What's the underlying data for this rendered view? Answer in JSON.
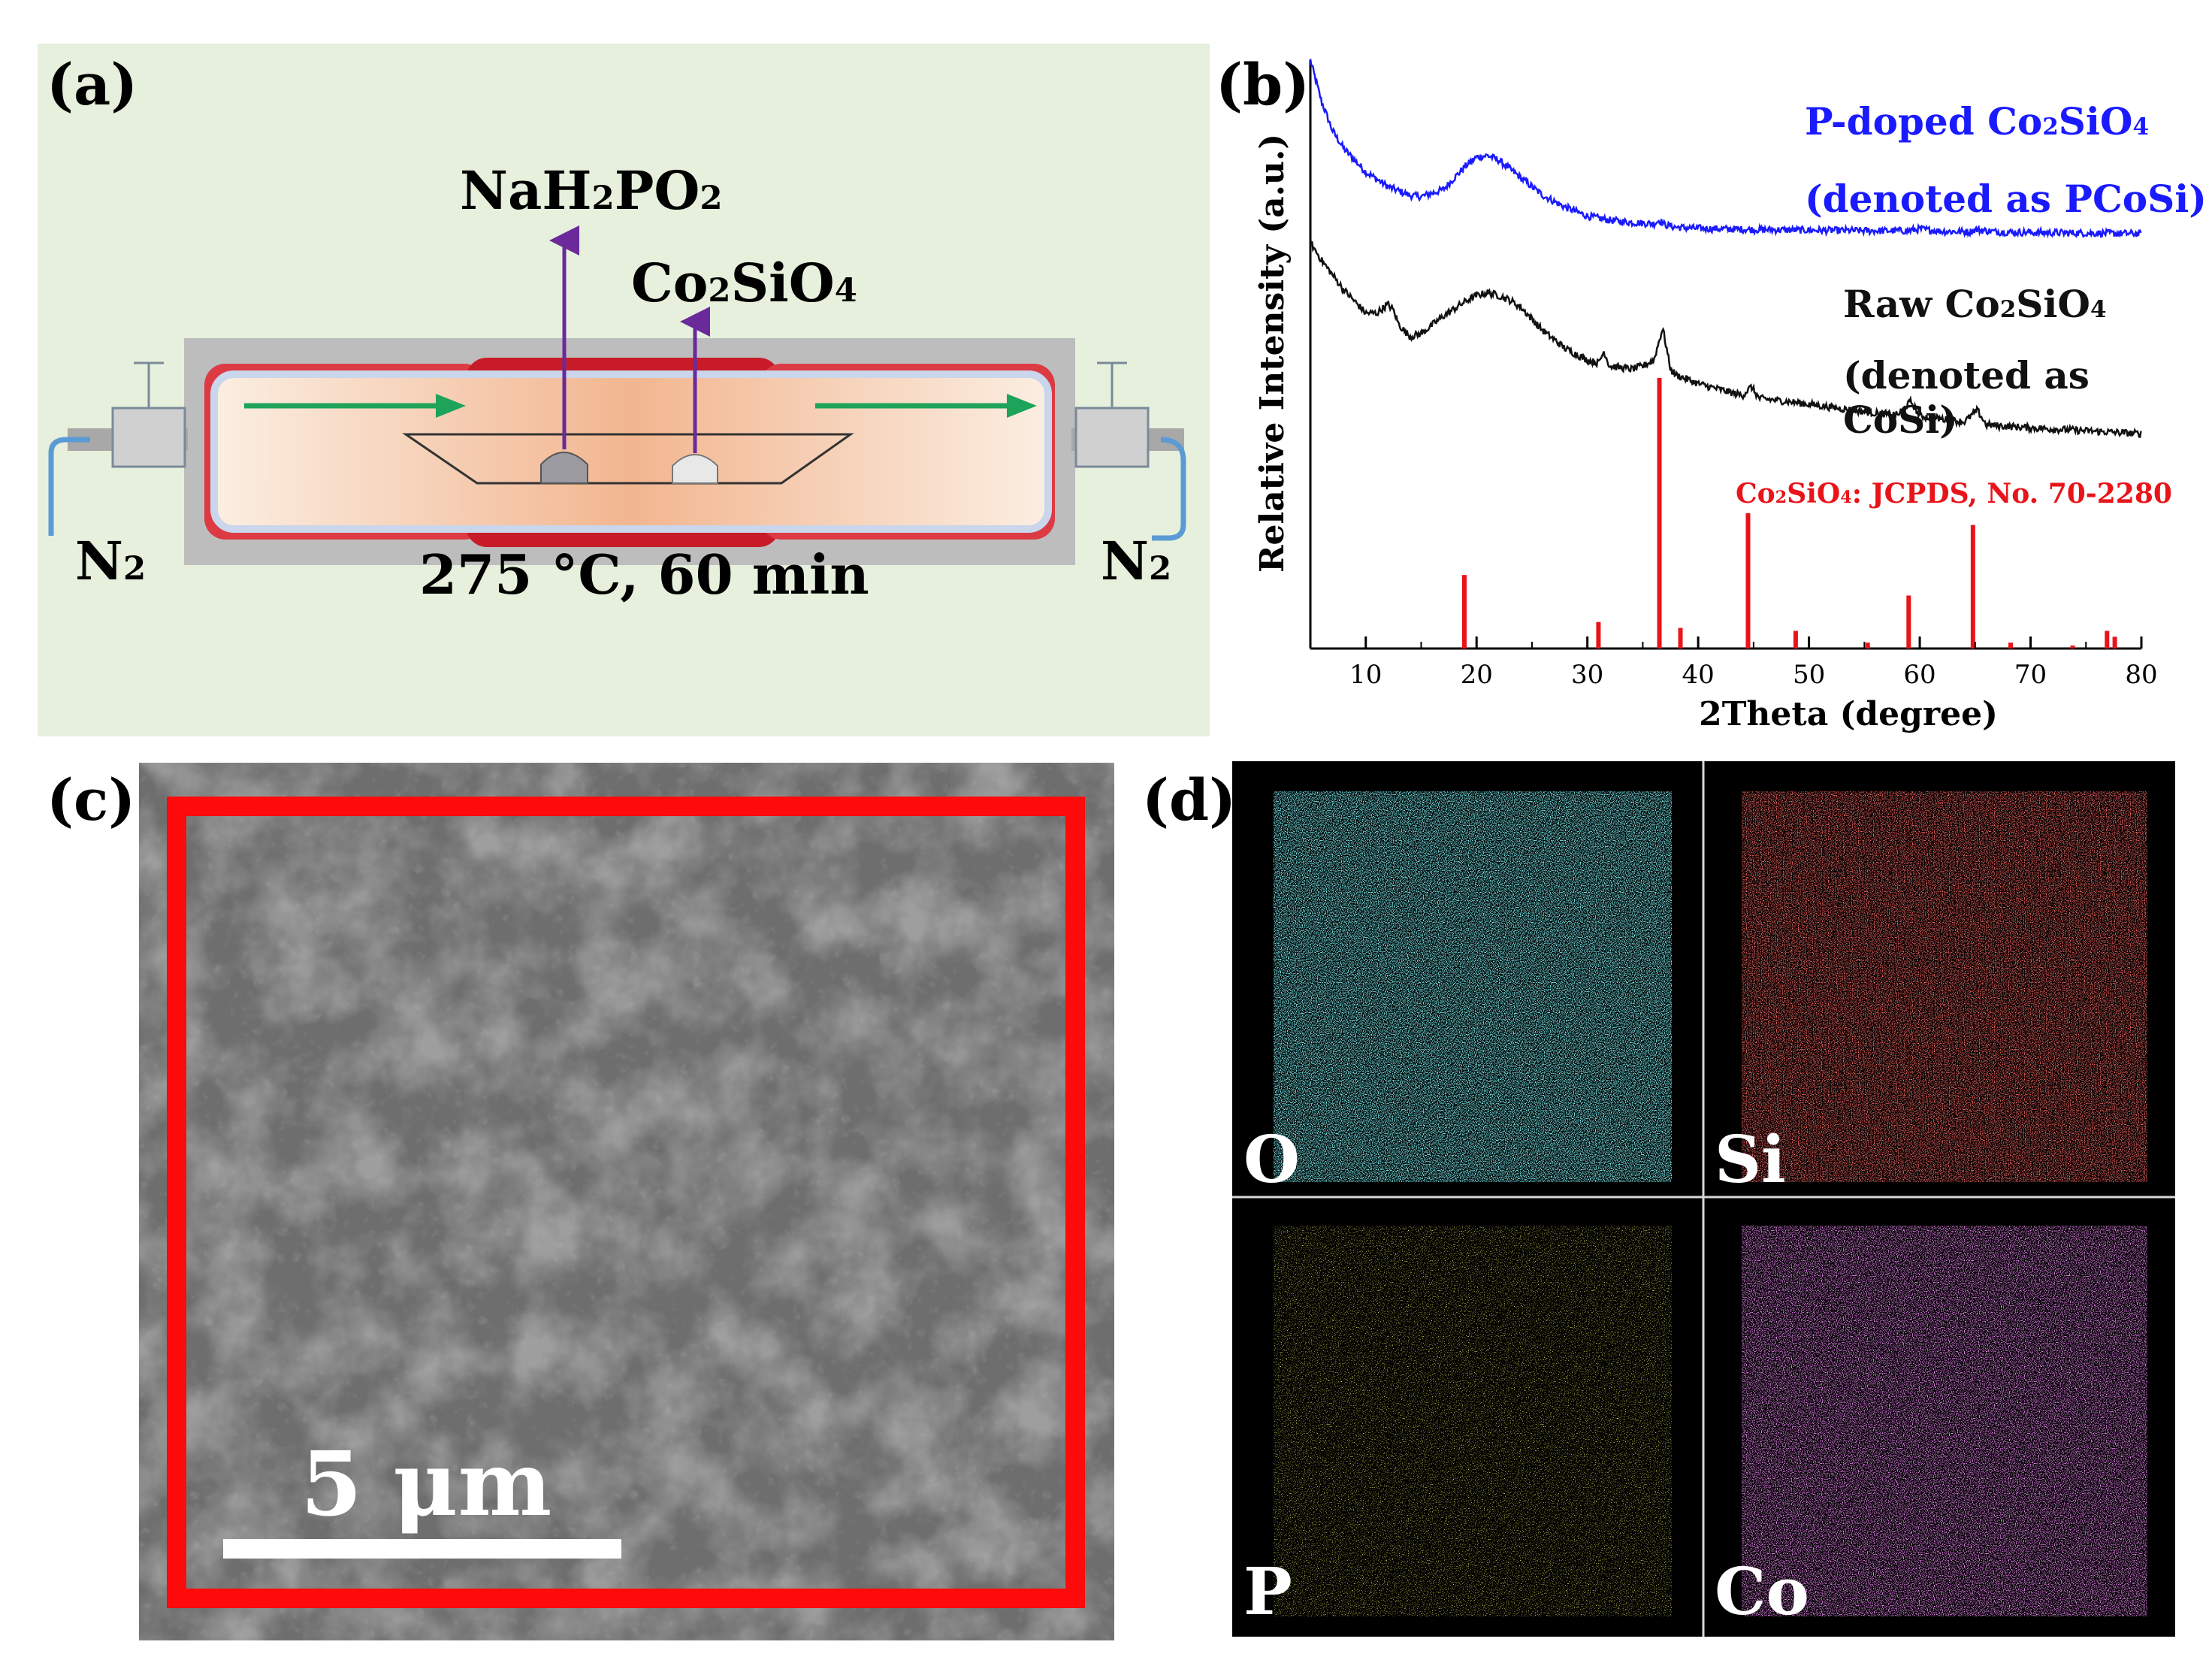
{
  "panels": {
    "a": {
      "label": "(a)",
      "reagent_top": {
        "main": "NaH",
        "sub1": "2",
        "mid": "PO",
        "sub2": "2"
      },
      "reagent_second": {
        "main": "Co",
        "sub1": "2",
        "mid": "SiO",
        "sub2": "4"
      },
      "gas_in": {
        "main": "N",
        "sub": "2"
      },
      "gas_out": {
        "main": "N",
        "sub": "2"
      },
      "conditions": "275 °C, 60 min"
    },
    "b": {
      "label": "(b)",
      "legend_pcosi_line1": {
        "pre": "P-doped Co",
        "sub1": "2",
        "mid": "SiO",
        "sub2": "4"
      },
      "legend_pcosi_line2": "(denoted as PCoSi)",
      "legend_cosi_line1": {
        "pre": "Raw Co",
        "sub1": "2",
        "mid": "SiO",
        "sub2": "4"
      },
      "legend_cosi_line2": "(denoted as CoSi)",
      "reference_label": {
        "pre": "Co",
        "sub1": "2",
        "mid": "SiO",
        "sub2": "4",
        "post": ": JCPDS, No. 70-2280"
      }
    },
    "c": {
      "label": "(c)",
      "scale_bar_text": "5 μm"
    },
    "d": {
      "label": "(d)",
      "maps": [
        {
          "element": "O",
          "color": "#2ec4cc"
        },
        {
          "element": "Si",
          "color": "#e0221e"
        },
        {
          "element": "P",
          "color": "#c8c21e"
        },
        {
          "element": "Co",
          "color": "#c43ad0"
        }
      ]
    }
  },
  "chart_data": {
    "type": "line",
    "title": "",
    "xlabel": "2Theta (degree)",
    "ylabel": "Relative Intensity (a.u.)",
    "xlim": [
      5,
      80
    ],
    "xticks": [
      10,
      20,
      30,
      40,
      50,
      60,
      70,
      80
    ],
    "series": [
      {
        "name": "P-doped Co2SiO4 (denoted as PCoSi)",
        "color": "#1a1aff",
        "x": [
          5,
          6,
          7,
          8,
          10,
          12,
          14,
          15,
          17,
          19,
          20,
          21,
          22,
          24,
          26,
          28,
          30,
          32,
          34,
          36,
          36.5,
          37,
          38,
          40,
          45,
          50,
          55,
          59,
          60,
          62,
          64.5,
          65,
          67,
          70,
          75,
          80
        ],
        "y": [
          1.0,
          0.93,
          0.88,
          0.85,
          0.81,
          0.785,
          0.77,
          0.768,
          0.78,
          0.82,
          0.835,
          0.838,
          0.83,
          0.8,
          0.77,
          0.75,
          0.735,
          0.728,
          0.724,
          0.722,
          0.728,
          0.72,
          0.716,
          0.714,
          0.712,
          0.711,
          0.71,
          0.71,
          0.713,
          0.709,
          0.708,
          0.712,
          0.708,
          0.707,
          0.706,
          0.705
        ]
      },
      {
        "name": "Raw Co2SiO4 (denoted as CoSi)",
        "color": "#111111",
        "x": [
          5,
          6,
          8,
          10,
          11,
          12,
          12.5,
          13,
          14,
          15,
          17,
          19,
          20,
          21,
          22,
          23,
          24,
          25,
          26,
          28,
          30,
          31,
          31.5,
          32,
          34,
          35,
          36,
          36.8,
          37.5,
          38,
          40,
          42,
          44,
          44.8,
          45.5,
          48,
          52,
          56,
          58,
          59.2,
          60,
          62,
          64,
          65.2,
          66,
          70,
          75,
          80
        ],
        "y": [
          0.69,
          0.66,
          0.61,
          0.57,
          0.57,
          0.585,
          0.575,
          0.55,
          0.53,
          0.535,
          0.565,
          0.59,
          0.6,
          0.605,
          0.6,
          0.592,
          0.58,
          0.56,
          0.54,
          0.51,
          0.49,
          0.485,
          0.505,
          0.48,
          0.475,
          0.48,
          0.49,
          0.545,
          0.475,
          0.465,
          0.45,
          0.44,
          0.43,
          0.445,
          0.425,
          0.42,
          0.41,
          0.4,
          0.397,
          0.42,
          0.395,
          0.39,
          0.385,
          0.405,
          0.38,
          0.375,
          0.37,
          0.365
        ]
      }
    ],
    "reference_sticks": {
      "name": "Co2SiO4: JCPDS, No. 70-2280",
      "color": "#e8141a",
      "x": [
        18.9,
        31.0,
        36.5,
        38.4,
        44.5,
        48.8,
        55.3,
        59.0,
        64.8,
        68.2,
        73.8,
        76.9,
        77.6
      ],
      "y": [
        0.125,
        0.045,
        0.46,
        0.035,
        0.23,
        0.03,
        0.01,
        0.09,
        0.21,
        0.01,
        0.005,
        0.03,
        0.02
      ]
    }
  }
}
